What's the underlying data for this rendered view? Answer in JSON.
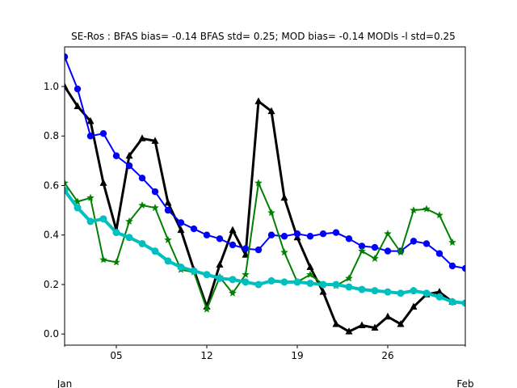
{
  "chart_data": {
    "type": "line",
    "title": "SE-Ros   : BFAS bias= -0.14 BFAS std= 0.25; MOD bias= -0.14 MODls -l std=0.25",
    "xlabel": "",
    "ylabel": "",
    "x": [
      1,
      2,
      3,
      4,
      5,
      6,
      7,
      8,
      9,
      10,
      11,
      12,
      13,
      14,
      15,
      16,
      17,
      18,
      19,
      20,
      21,
      22,
      23,
      24,
      25,
      26,
      27,
      28,
      29,
      30,
      31,
      32
    ],
    "xlim": [
      1,
      32
    ],
    "ylim": [
      -0.045,
      1.16
    ],
    "x_ticks": [
      {
        "value": 5,
        "label": "05"
      },
      {
        "value": 12,
        "label": "12"
      },
      {
        "value": 19,
        "label": "19"
      },
      {
        "value": 26,
        "label": "26"
      }
    ],
    "x_minor_ticks": [
      1,
      32
    ],
    "month_labels": [
      {
        "value": 1,
        "label": "Jan"
      },
      {
        "value": 32,
        "label": "Feb"
      }
    ],
    "y_ticks": [
      0.0,
      0.2,
      0.4,
      0.6,
      0.8,
      1.0
    ],
    "y_tick_labels": [
      "0.0",
      "0.2",
      "0.4",
      "0.6",
      "0.8",
      "1.0"
    ],
    "grid": false,
    "legend": "none",
    "series": [
      {
        "id": "black",
        "color": "#000000",
        "marker": "triangle",
        "line_width": 3,
        "values": [
          1.0,
          0.92,
          0.86,
          0.61,
          0.42,
          0.72,
          0.79,
          0.78,
          0.53,
          0.42,
          0.26,
          0.11,
          0.28,
          0.42,
          0.32,
          0.94,
          0.9,
          0.55,
          0.39,
          0.27,
          0.17,
          0.04,
          0.01,
          0.035,
          0.025,
          0.07,
          0.04,
          0.11,
          0.16,
          0.17,
          0.13,
          null
        ]
      },
      {
        "id": "blue",
        "color": "#0000ff",
        "marker": "circle",
        "line_width": 2,
        "values": [
          1.12,
          0.99,
          0.8,
          0.81,
          0.72,
          0.68,
          0.63,
          0.575,
          0.5,
          0.45,
          0.425,
          0.4,
          0.385,
          0.36,
          0.345,
          0.34,
          0.4,
          0.395,
          0.405,
          0.395,
          0.405,
          0.41,
          0.385,
          0.355,
          0.35,
          0.335,
          0.335,
          0.375,
          0.365,
          0.325,
          0.275,
          0.265
        ]
      },
      {
        "id": "green",
        "color": "#008000",
        "marker": "star",
        "line_width": 2,
        "values": [
          0.61,
          0.535,
          0.55,
          0.3,
          0.29,
          0.455,
          0.52,
          0.51,
          0.38,
          0.26,
          0.25,
          0.1,
          0.23,
          0.165,
          0.24,
          0.61,
          0.49,
          0.33,
          0.21,
          0.24,
          0.2,
          0.195,
          0.225,
          0.335,
          0.305,
          0.405,
          0.33,
          0.5,
          0.505,
          0.48,
          0.37,
          null
        ]
      },
      {
        "id": "cyan",
        "color": "#00bfbf",
        "marker": "circle",
        "line_width": 4,
        "values": [
          0.58,
          0.51,
          0.455,
          0.465,
          0.41,
          0.39,
          0.365,
          0.335,
          0.295,
          0.27,
          0.255,
          0.24,
          0.225,
          0.22,
          0.21,
          0.2,
          0.215,
          0.21,
          0.21,
          0.205,
          0.2,
          0.2,
          0.19,
          0.18,
          0.175,
          0.17,
          0.165,
          0.175,
          0.165,
          0.15,
          0.13,
          0.125
        ]
      }
    ]
  }
}
